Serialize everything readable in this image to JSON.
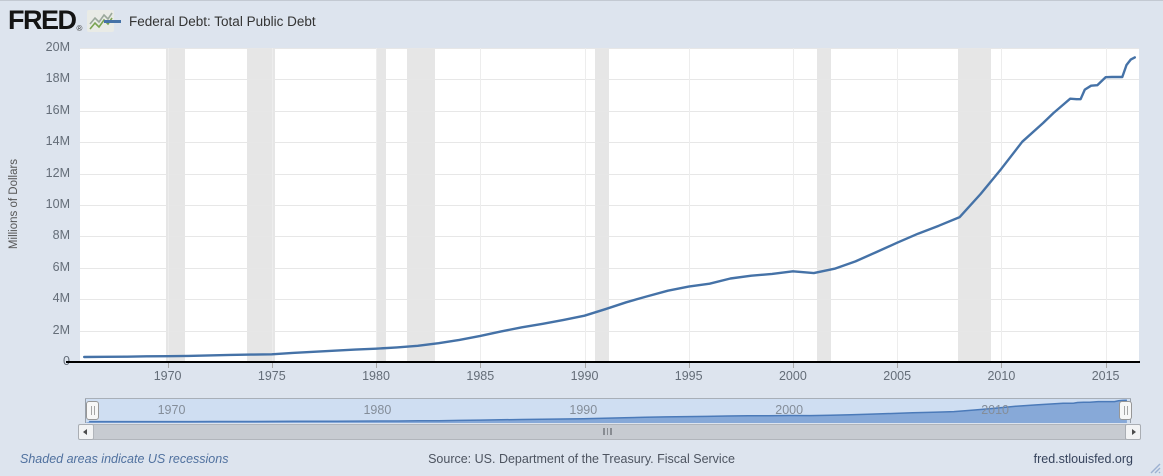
{
  "header": {
    "logo_text": "FRED",
    "logo_registered": "®",
    "series_label": "Federal Debt: Total Public Debt"
  },
  "chart_data": {
    "type": "line",
    "title": "Federal Debt: Total Public Debt",
    "ylabel": "Millions of Dollars",
    "xlabel": "",
    "ylim": [
      0,
      20
    ],
    "xlim": [
      1965.8,
      2016.6
    ],
    "y_ticks": [
      "0",
      "2M",
      "4M",
      "6M",
      "8M",
      "10M",
      "12M",
      "14M",
      "16M",
      "18M",
      "20M"
    ],
    "y_tick_values": [
      0,
      2,
      4,
      6,
      8,
      10,
      12,
      14,
      16,
      18,
      20
    ],
    "x_ticks": [
      1970,
      1975,
      1980,
      1985,
      1990,
      1995,
      2000,
      2005,
      2010,
      2015
    ],
    "grid": true,
    "legend_position": "top-left",
    "value_unit": "millions of dollars, axis shown in M (1M = 1,000,000 million)",
    "series": [
      {
        "name": "Federal Debt: Total Public Debt",
        "color": "#4572a7",
        "x": [
          1966,
          1967,
          1968,
          1969,
          1970,
          1971,
          1972,
          1973,
          1974,
          1975,
          1976,
          1977,
          1978,
          1979,
          1980,
          1981,
          1982,
          1983,
          1984,
          1985,
          1986,
          1987,
          1988,
          1989,
          1990,
          1991,
          1992,
          1993,
          1994,
          1995,
          1996,
          1997,
          1998,
          1999,
          2000,
          2001,
          2002,
          2003,
          2004,
          2005,
          2006,
          2007,
          2008,
          2009,
          2010,
          2011,
          2012,
          2012.5,
          2013,
          2013.3,
          2013.6,
          2013.8,
          2014,
          2014.3,
          2014.6,
          2015,
          2015.3,
          2015.6,
          2015.8,
          2016,
          2016.2,
          2016.4
        ],
        "values": [
          0.32,
          0.33,
          0.34,
          0.36,
          0.37,
          0.39,
          0.42,
          0.45,
          0.47,
          0.49,
          0.58,
          0.65,
          0.72,
          0.79,
          0.85,
          0.93,
          1.03,
          1.2,
          1.41,
          1.66,
          1.95,
          2.21,
          2.43,
          2.68,
          2.95,
          3.36,
          3.8,
          4.18,
          4.54,
          4.8,
          4.99,
          5.32,
          5.5,
          5.61,
          5.78,
          5.66,
          5.94,
          6.41,
          7.0,
          7.6,
          8.17,
          8.68,
          9.23,
          10.7,
          12.31,
          14.03,
          15.22,
          15.86,
          16.43,
          16.77,
          16.74,
          16.74,
          17.35,
          17.6,
          17.63,
          18.14,
          18.15,
          18.15,
          18.15,
          18.92,
          19.26,
          19.4
        ]
      }
    ],
    "recessions": [
      [
        1969.92,
        1970.83
      ],
      [
        1973.83,
        1975.17
      ],
      [
        1980.0,
        1980.5
      ],
      [
        1981.5,
        1982.83
      ],
      [
        1990.5,
        1991.17
      ],
      [
        2001.17,
        2001.83
      ],
      [
        2007.92,
        2009.5
      ]
    ]
  },
  "selector": {
    "labels": [
      "1970",
      "1980",
      "1990",
      "2000",
      "2010"
    ],
    "years": [
      1970,
      1980,
      1990,
      2000,
      2010
    ]
  },
  "colors": {
    "line": "#4572a7",
    "recession_band": "#e6e6e6",
    "selector_fill": "#87a9d8",
    "selector_stroke": "#4b7ab9",
    "selector_bg": "#cfdef2",
    "page_bg": "#dde4ee"
  },
  "footer": {
    "note": "Shaded areas indicate US recessions",
    "source": "Source: US. Department of the Treasury. Fiscal Service",
    "site": "fred.stlouisfed.org"
  }
}
